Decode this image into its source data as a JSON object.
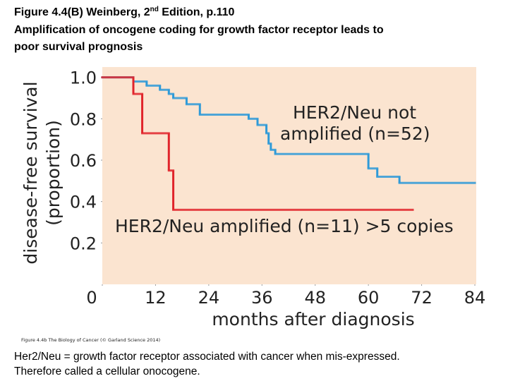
{
  "slide": {
    "heading": [
      "Figure 4.4(B) Weinberg, 2",
      "nd",
      " Edition,   p.110",
      "Amplification of oncogene coding for growth factor receptor leads to",
      "poor survival prognosis"
    ],
    "credit": "Figure 4.4b The Biology of Cancer (© Garland Science 2014)",
    "caption": [
      "Her2/Neu = growth factor receptor associated with cancer when mis-expressed.",
      "Therefore called a cellular onocogene."
    ]
  },
  "chart_data": {
    "type": "step",
    "ylabel": [
      "disease-free survival",
      "(proportion)"
    ],
    "xlabel": "months after diagnosis",
    "annotations": [
      "HER2/Neu not",
      "amplified (n=52)",
      "HER2/Neu amplified (n=11) >5 copies"
    ],
    "xlim": [
      0,
      84
    ],
    "xticks": [
      0,
      12,
      24,
      36,
      48,
      60,
      72,
      84
    ],
    "ylim": [
      0,
      1.05
    ],
    "yticks": [
      0.2,
      0.4,
      0.6,
      0.8,
      {
        "value": 1,
        "label": "1.0"
      }
    ],
    "background": "#fbe4d0",
    "series": [
      {
        "color": "#2e9ad8",
        "x": [
          0,
          7,
          10,
          13,
          15,
          16,
          19,
          22,
          33,
          35,
          37,
          37.5,
          38,
          39,
          60,
          62,
          67,
          84
        ],
        "values": [
          1,
          0.98,
          0.96,
          0.94,
          0.92,
          0.9,
          0.87,
          0.82,
          0.8,
          0.77,
          0.73,
          0.68,
          0.65,
          0.63,
          0.56,
          0.52,
          0.49,
          0.49
        ]
      },
      {
        "color": "#e0242b",
        "x": [
          0,
          7,
          9,
          15,
          16,
          70
        ],
        "values": [
          1,
          0.92,
          0.73,
          0.55,
          0.36,
          0.36
        ]
      }
    ]
  }
}
